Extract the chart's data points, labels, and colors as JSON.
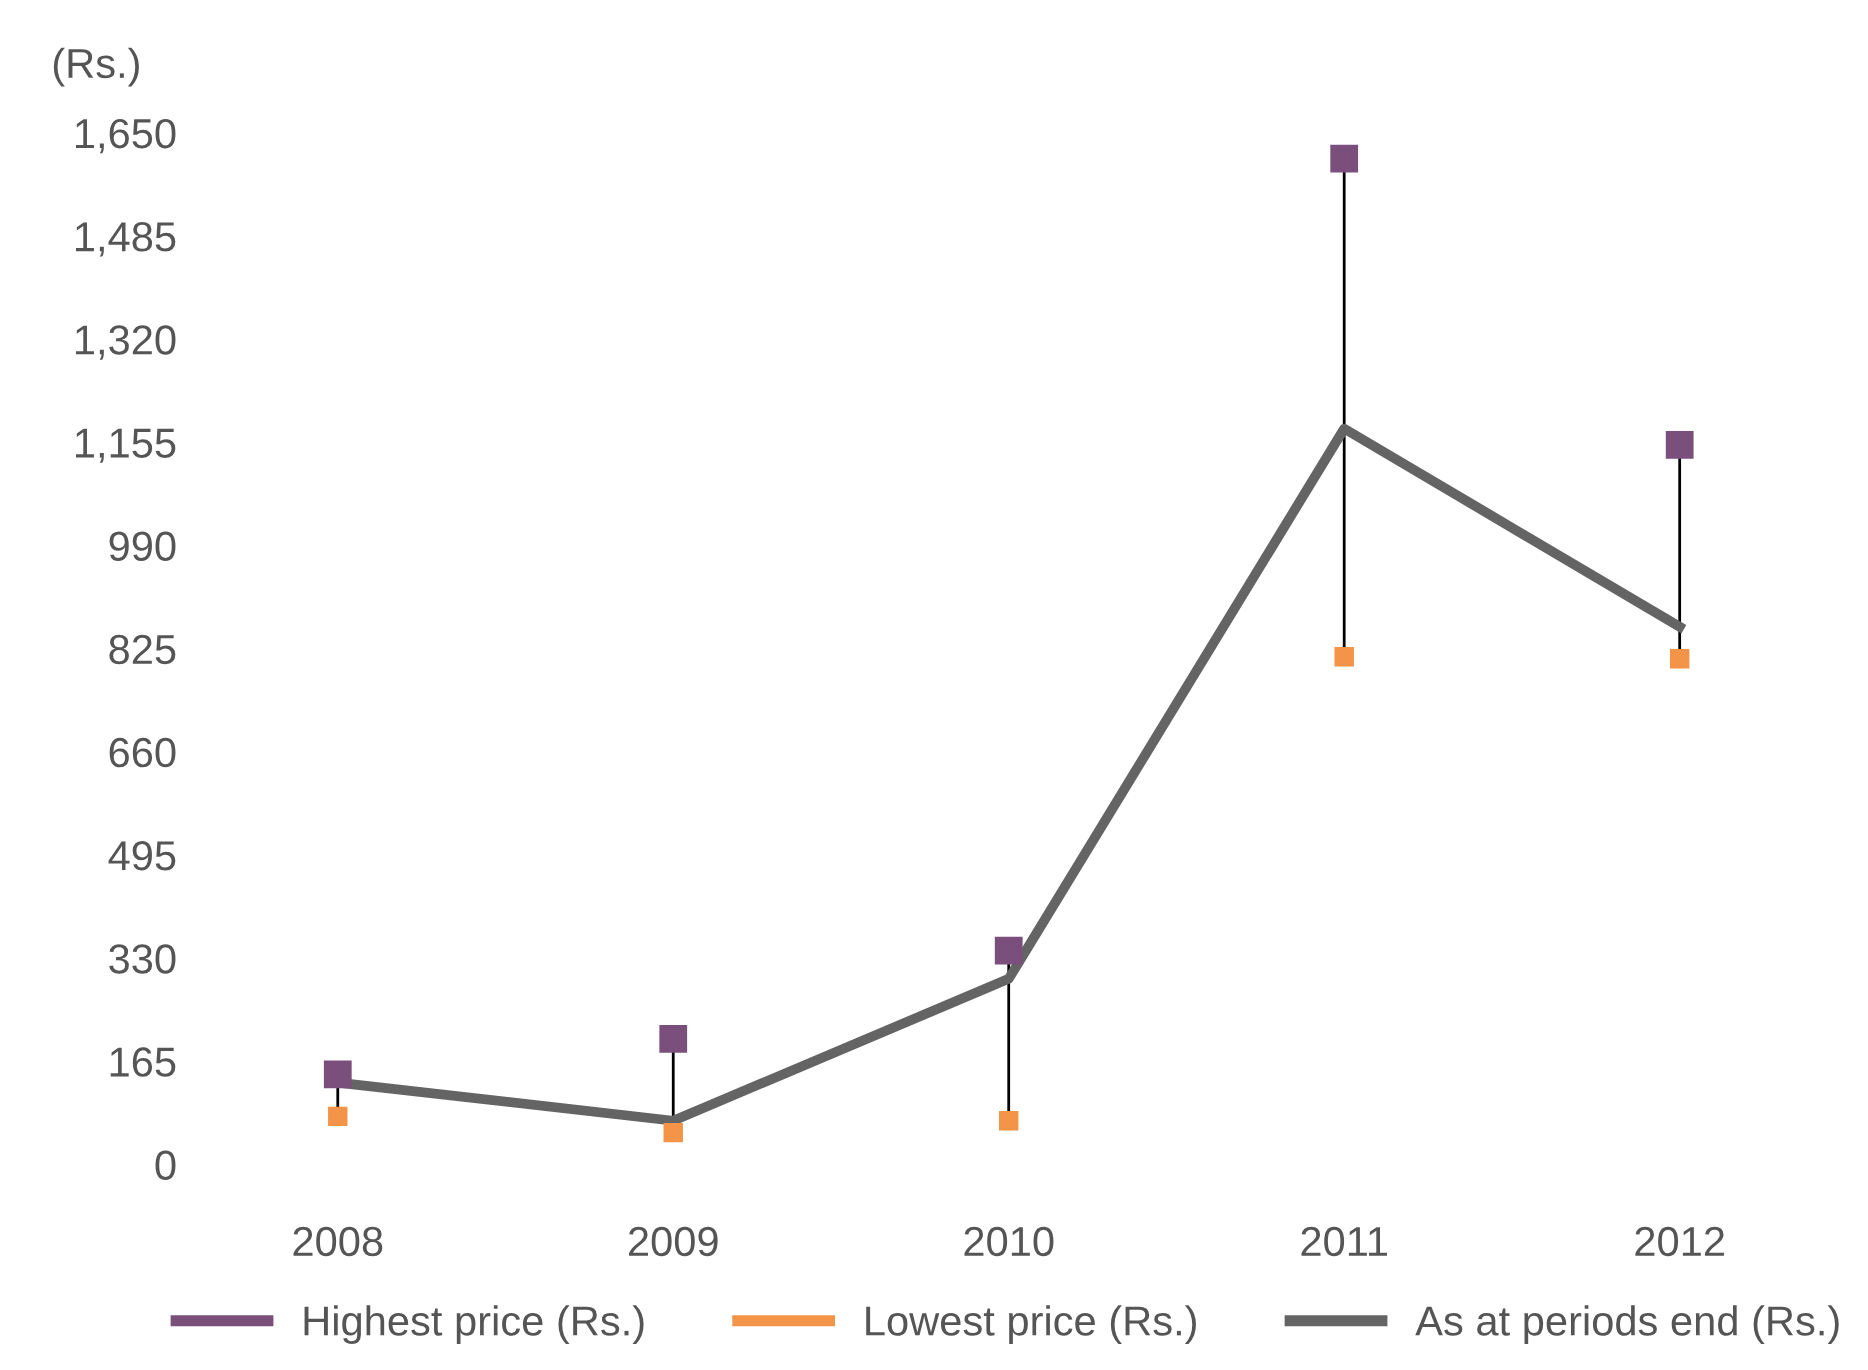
{
  "chart_data": {
    "type": "line",
    "ylabel": "(Rs.)",
    "categories": [
      "2008",
      "2009",
      "2010",
      "2011",
      "2012"
    ],
    "series": [
      {
        "name": "Highest price (Rs.)",
        "type": "scatter",
        "marker": "square",
        "color": "#7b4f7b",
        "values": [
          144,
          201,
          342,
          1609,
          1151
        ]
      },
      {
        "name": "Lowest price (Rs.)",
        "type": "scatter",
        "marker": "square",
        "color": "#f39449",
        "values": [
          77,
          51,
          70,
          812,
          809
        ]
      },
      {
        "name": "As at periods end (Rs.)",
        "marker": "none",
        "color": "#646464",
        "values": [
          131,
          70,
          297,
          1177,
          860
        ]
      }
    ],
    "ylim": [
      0,
      1650
    ],
    "yticks": [
      0,
      165,
      330,
      495,
      660,
      825,
      990,
      {
        "value": 1155,
        "label": "1,155"
      },
      {
        "value": 1320,
        "label": "1,320"
      },
      {
        "value": 1485,
        "label": "1,485"
      },
      {
        "value": 1650,
        "label": "1,650"
      }
    ],
    "grid": false,
    "legend": "bottom"
  }
}
